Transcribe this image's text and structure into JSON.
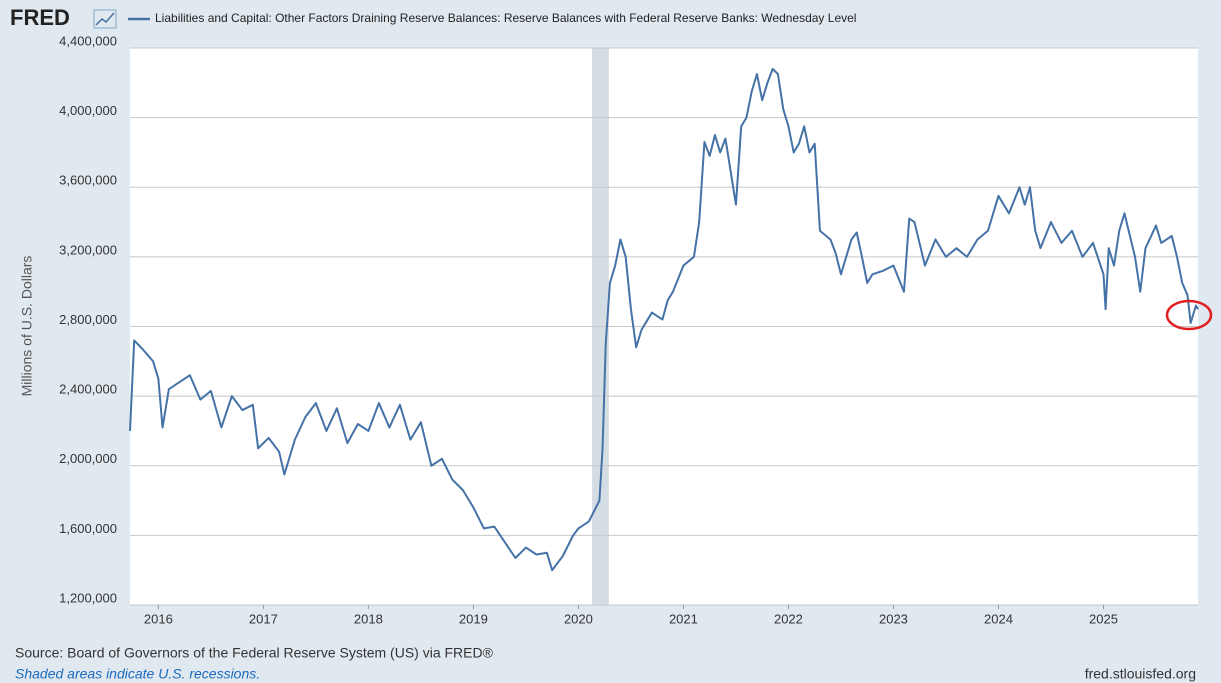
{
  "logo": "FRED",
  "chart_data": {
    "type": "line",
    "y_label": "Millions of U.S. Dollars",
    "source": "Source: Board of Governors of the Federal Reserve System (US) via FRED®",
    "note": "Shaded areas indicate U.S. recessions.",
    "site": "fred.stlouisfed.org",
    "x": [
      2015.73,
      2015.77,
      2015.85,
      2015.95,
      2016.0,
      2016.04,
      2016.1,
      2016.2,
      2016.3,
      2016.4,
      2016.5,
      2016.6,
      2016.7,
      2016.8,
      2016.9,
      2016.95,
      2017.05,
      2017.15,
      2017.2,
      2017.3,
      2017.4,
      2017.5,
      2017.6,
      2017.7,
      2017.8,
      2017.9,
      2018.0,
      2018.1,
      2018.2,
      2018.3,
      2018.4,
      2018.5,
      2018.6,
      2018.7,
      2018.8,
      2018.9,
      2019.0,
      2019.1,
      2019.2,
      2019.3,
      2019.4,
      2019.5,
      2019.6,
      2019.7,
      2019.75,
      2019.85,
      2019.95,
      2020.0,
      2020.1,
      2020.2,
      2020.23,
      2020.26,
      2020.3,
      2020.35,
      2020.4,
      2020.45,
      2020.5,
      2020.55,
      2020.6,
      2020.7,
      2020.8,
      2020.85,
      2020.9,
      2021.0,
      2021.1,
      2021.15,
      2021.2,
      2021.25,
      2021.3,
      2021.35,
      2021.4,
      2021.5,
      2021.55,
      2021.6,
      2021.65,
      2021.7,
      2021.75,
      2021.8,
      2021.85,
      2021.9,
      2021.95,
      2022.0,
      2022.05,
      2022.1,
      2022.15,
      2022.2,
      2022.25,
      2022.3,
      2022.4,
      2022.45,
      2022.5,
      2022.6,
      2022.65,
      2022.7,
      2022.75,
      2022.8,
      2022.9,
      2023.0,
      2023.1,
      2023.15,
      2023.2,
      2023.3,
      2023.4,
      2023.5,
      2023.6,
      2023.7,
      2023.8,
      2023.9,
      2024.0,
      2024.1,
      2024.2,
      2024.25,
      2024.3,
      2024.35,
      2024.4,
      2024.5,
      2024.6,
      2024.7,
      2024.8,
      2024.9,
      2025.0,
      2025.02,
      2025.05,
      2025.1,
      2025.15,
      2025.2,
      2025.3,
      2025.35,
      2025.4,
      2025.5,
      2025.55,
      2025.65,
      2025.7,
      2025.75,
      2025.8,
      2025.83,
      2025.88,
      2025.9
    ],
    "series": [
      {
        "name": "Liabilities and Capital: Other Factors Draining Reserve Balances: Reserve Balances with Federal Reserve Banks: Wednesday Level",
        "color": "#4572a7",
        "values": [
          2200000,
          2720000,
          2670000,
          2600000,
          2500000,
          2220000,
          2440000,
          2480000,
          2520000,
          2380000,
          2430000,
          2220000,
          2400000,
          2320000,
          2350000,
          2100000,
          2160000,
          2080000,
          1950000,
          2150000,
          2280000,
          2360000,
          2200000,
          2330000,
          2130000,
          2240000,
          2200000,
          2360000,
          2220000,
          2350000,
          2150000,
          2250000,
          2000000,
          2040000,
          1920000,
          1860000,
          1760000,
          1640000,
          1650000,
          1560000,
          1470000,
          1530000,
          1490000,
          1500000,
          1400000,
          1480000,
          1600000,
          1640000,
          1680000,
          1800000,
          2100000,
          2700000,
          3050000,
          3150000,
          3300000,
          3200000,
          2900000,
          2680000,
          2780000,
          2880000,
          2840000,
          2950000,
          3000000,
          3150000,
          3200000,
          3400000,
          3860000,
          3780000,
          3900000,
          3800000,
          3880000,
          3500000,
          3950000,
          4000000,
          4150000,
          4250000,
          4100000,
          4200000,
          4280000,
          4250000,
          4050000,
          3950000,
          3800000,
          3850000,
          3950000,
          3800000,
          3850000,
          3350000,
          3300000,
          3220000,
          3100000,
          3300000,
          3340000,
          3200000,
          3050000,
          3100000,
          3120000,
          3150000,
          3000000,
          3420000,
          3400000,
          3150000,
          3300000,
          3200000,
          3250000,
          3200000,
          3300000,
          3350000,
          3550000,
          3450000,
          3600000,
          3500000,
          3600000,
          3350000,
          3250000,
          3400000,
          3280000,
          3350000,
          3200000,
          3280000,
          3100000,
          2900000,
          3250000,
          3150000,
          3350000,
          3450000,
          3200000,
          3000000,
          3250000,
          3380000,
          3280000,
          3320000,
          3200000,
          3050000,
          2980000,
          2820000,
          2920000,
          2900000
        ]
      }
    ],
    "recession": {
      "start": 2020.13,
      "end": 2020.29
    },
    "xlim": [
      2015.73,
      2025.9
    ],
    "xticks": [
      2016,
      2017,
      2018,
      2019,
      2020,
      2021,
      2022,
      2023,
      2024,
      2025
    ],
    "ylim": [
      1200000,
      4400000
    ],
    "yticks": [
      {
        "value": 1200000,
        "label": "1,200,000"
      },
      {
        "value": 1600000,
        "label": "1,600,000"
      },
      {
        "value": 2000000,
        "label": "2,000,000"
      },
      {
        "value": 2400000,
        "label": "2,400,000"
      },
      {
        "value": 2800000,
        "label": "2,800,000"
      },
      {
        "value": 3200000,
        "label": "3,200,000"
      },
      {
        "value": 3600000,
        "label": "3,600,000"
      },
      {
        "value": 4000000,
        "label": "4,000,000"
      },
      {
        "value": 4400000,
        "label": "4,400,000"
      }
    ],
    "grid": true
  }
}
